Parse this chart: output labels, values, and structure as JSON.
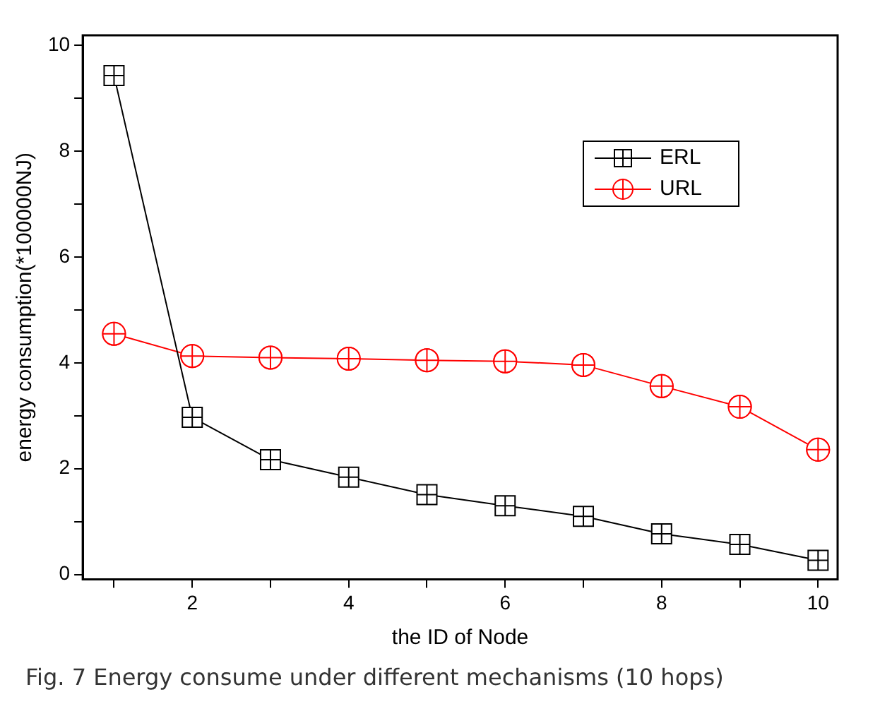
{
  "chart_data": {
    "type": "line",
    "xlabel": "the ID of Node",
    "ylabel": "energy consumption(*100000NJ)",
    "annotations": [
      "Fig. 7 Energy consume under different mechanisms (10 hops)"
    ],
    "x": [
      1,
      2,
      3,
      4,
      5,
      6,
      7,
      8,
      9,
      10
    ],
    "series": [
      {
        "name": "ERL",
        "color": "#000000",
        "marker": "square",
        "values": [
          9.43,
          2.97,
          2.17,
          1.84,
          1.51,
          1.3,
          1.1,
          0.77,
          0.57,
          0.27
        ]
      },
      {
        "name": "URL",
        "color": "#ff0000",
        "marker": "circle",
        "values": [
          4.55,
          4.13,
          4.1,
          4.08,
          4.05,
          4.03,
          3.96,
          3.56,
          3.17,
          2.36
        ]
      }
    ],
    "xlim": [
      0.6,
      10.25
    ],
    "ylim": [
      -0.09,
      10.19
    ],
    "xticks": [
      {
        "value": 1,
        "label": null
      },
      2,
      {
        "value": 3,
        "label": null
      },
      4,
      {
        "value": 5,
        "label": null
      },
      6,
      {
        "value": 7,
        "label": null
      },
      8,
      {
        "value": 9,
        "label": null
      },
      10
    ],
    "yticks": [
      0,
      {
        "value": 1,
        "label": null
      },
      2,
      {
        "value": 3,
        "label": null
      },
      4,
      {
        "value": 5,
        "label": null
      },
      6,
      {
        "value": 7,
        "label": null
      },
      8,
      {
        "value": 9,
        "label": null
      },
      10
    ],
    "grid": false,
    "legend": "top right",
    "line_style": "solid"
  }
}
